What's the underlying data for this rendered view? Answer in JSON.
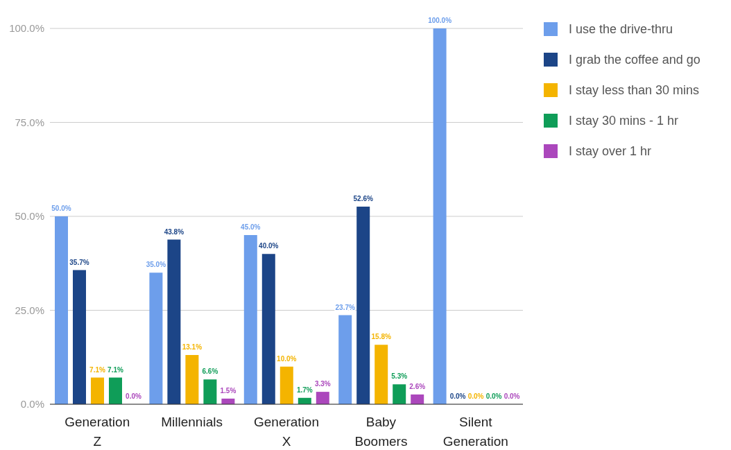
{
  "chart_data": {
    "type": "bar",
    "categories": [
      "Generation Z",
      "Millennials",
      "Generation X",
      "Baby Boomers",
      "Silent Generation"
    ],
    "series": [
      {
        "name": "I use the drive-thru",
        "color": "#6d9eeb",
        "values": [
          50.0,
          35.0,
          45.0,
          23.7,
          100.0
        ],
        "value_labels": [
          "50.0%",
          "35.0%",
          "45.0%",
          "23.7%",
          "100.0%"
        ]
      },
      {
        "name": "I grab the coffee and go",
        "color": "#1c4587",
        "values": [
          35.7,
          43.8,
          40.0,
          52.6,
          0.0
        ],
        "value_labels": [
          "35.7%",
          "43.8%",
          "40.0%",
          "52.6%",
          "0.0%"
        ]
      },
      {
        "name": "I stay less than 30 mins",
        "color": "#f4b400",
        "values": [
          7.1,
          13.1,
          10.0,
          15.8,
          0.0
        ],
        "value_labels": [
          "7.1%",
          "13.1%",
          "10.0%",
          "15.8%",
          "0.0%"
        ]
      },
      {
        "name": "I stay 30 mins - 1 hr",
        "color": "#0f9d58",
        "values": [
          7.1,
          6.6,
          1.7,
          5.3,
          0.0
        ],
        "value_labels": [
          "7.1%",
          "6.6%",
          "1.7%",
          "5.3%",
          "0.0%"
        ]
      },
      {
        "name": "I stay over 1 hr",
        "color": "#ab47bc",
        "values": [
          0.0,
          1.5,
          3.3,
          2.6,
          0.0
        ],
        "value_labels": [
          "0.0%",
          "1.5%",
          "3.3%",
          "2.6%",
          "0.0%"
        ]
      }
    ],
    "ylim": [
      0,
      100
    ],
    "yticks": [
      {
        "value": 0,
        "label": "0.0%"
      },
      {
        "value": 25,
        "label": "25.0%"
      },
      {
        "value": 50,
        "label": "50.0%"
      },
      {
        "value": 75,
        "label": "75.0%"
      },
      {
        "value": 100,
        "label": "100.0%"
      }
    ],
    "grid": "y",
    "legend": "right"
  }
}
